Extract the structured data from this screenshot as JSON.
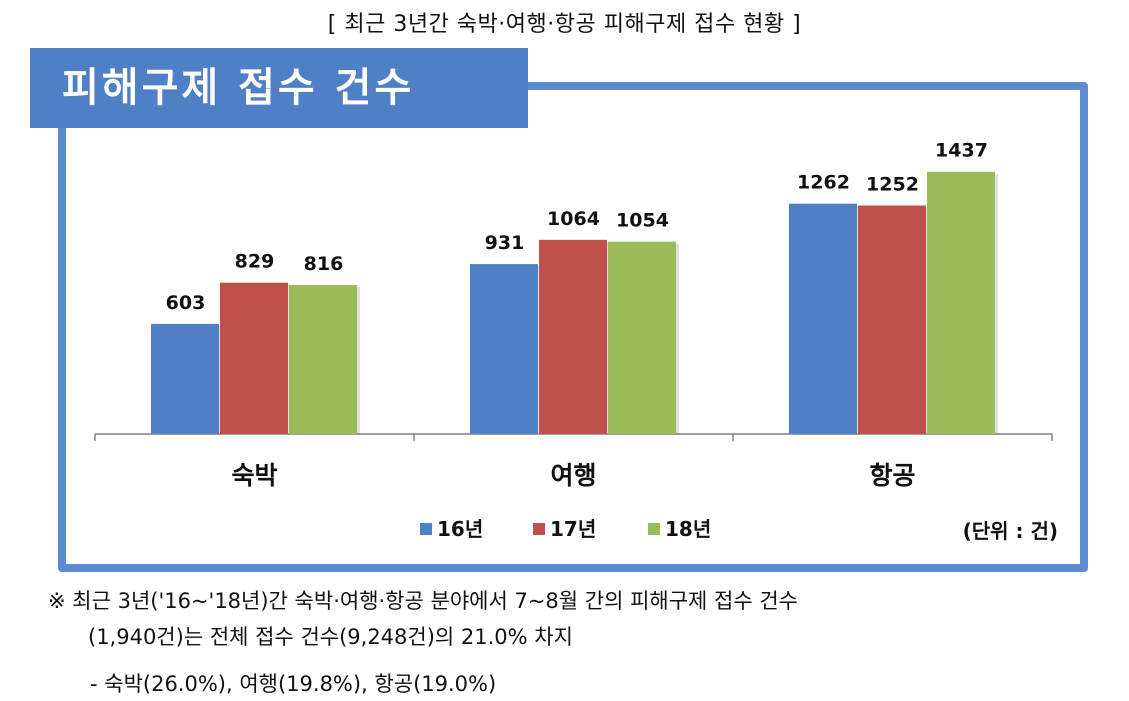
{
  "caption": "[ 최근 3년간 숙박·여행·항공 피해구제 접수 현황 ]",
  "chart_data": {
    "type": "bar",
    "title": "피해구제 접수 건수",
    "categories": [
      "숙박",
      "여행",
      "항공"
    ],
    "series": [
      {
        "name": "16년",
        "color": "#4f7fc4",
        "values": [
          603,
          931,
          1262
        ]
      },
      {
        "name": "17년",
        "color": "#c0504d",
        "values": [
          829,
          1064,
          1252
        ]
      },
      {
        "name": "18년",
        "color": "#9bbb59",
        "values": [
          816,
          1054,
          1437
        ]
      }
    ],
    "ylim": [
      0,
      1600
    ],
    "unit_label": "(단위 : 건)",
    "legend_position": "bottom",
    "grid": false
  },
  "notes": {
    "line1": "※ 최근 3년('16~'18년)간 숙박·여행·항공 분야에서 7~8월 간의 피해구제 접수 건수",
    "line2": "(1,940건)는 전체 접수 건수(9,248건)의 21.0% 차지",
    "line3": "- 숙박(26.0%), 여행(19.8%), 항공(19.0%)"
  }
}
